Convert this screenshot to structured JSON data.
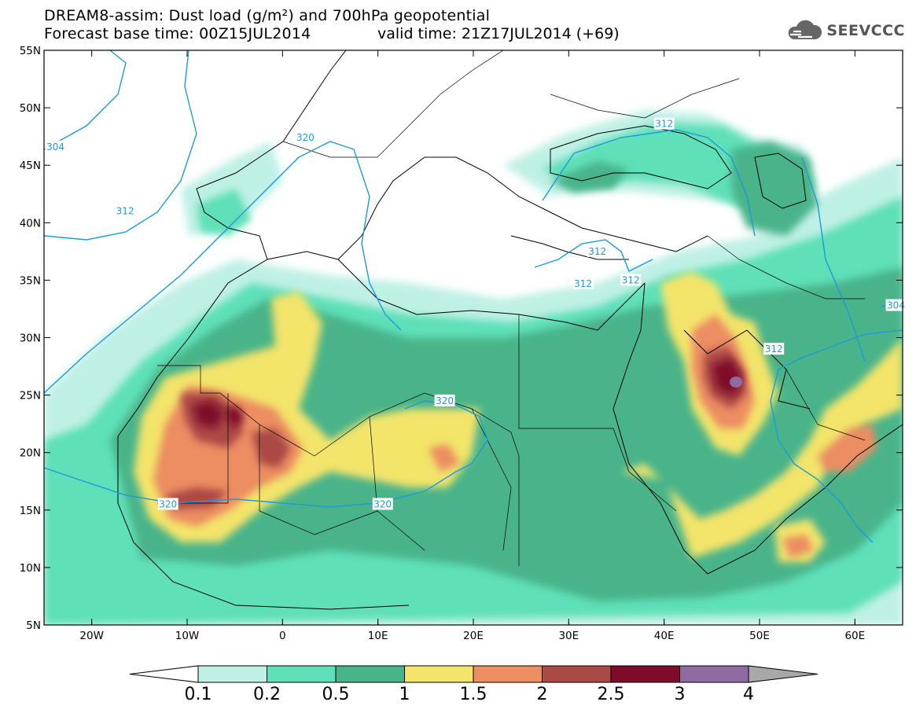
{
  "header": {
    "title": "DREAM8-assim: Dust load (g/m²) and 700hPa geopotential",
    "base_time": "Forecast base time: 00Z15JUL2014",
    "valid_time": "valid time: 21Z17JUL2014 (+69)"
  },
  "logo": {
    "text": "SEEVCCC",
    "icon": "cloud-icon"
  },
  "map": {
    "lon_range": [
      -25,
      65
    ],
    "lat_range": [
      5,
      55
    ],
    "lon_ticks": [
      {
        "lon": -20,
        "label": "20W"
      },
      {
        "lon": -10,
        "label": "10W"
      },
      {
        "lon": 0,
        "label": "0"
      },
      {
        "lon": 10,
        "label": "10E"
      },
      {
        "lon": 20,
        "label": "20E"
      },
      {
        "lon": 30,
        "label": "30E"
      },
      {
        "lon": 40,
        "label": "40E"
      },
      {
        "lon": 50,
        "label": "50E"
      },
      {
        "lon": 60,
        "label": "60E"
      }
    ],
    "lat_ticks": [
      {
        "lat": 55,
        "label": "55N"
      },
      {
        "lat": 50,
        "label": "50N"
      },
      {
        "lat": 45,
        "label": "45N"
      },
      {
        "lat": 40,
        "label": "40N"
      },
      {
        "lat": 35,
        "label": "35N"
      },
      {
        "lat": 30,
        "label": "30N"
      },
      {
        "lat": 25,
        "label": "25N"
      },
      {
        "lat": 20,
        "label": "20N"
      },
      {
        "lat": 15,
        "label": "15N"
      },
      {
        "lat": 10,
        "label": "10N"
      },
      {
        "lat": 5,
        "label": "5N"
      }
    ],
    "contour_color": "#1f9ad6",
    "contour_labels": [
      {
        "text": "304",
        "lon": -23.8,
        "lat": 46.6
      },
      {
        "text": "312",
        "lon": -16.5,
        "lat": 41.0
      },
      {
        "text": "320",
        "lon": 2.4,
        "lat": 47.4
      },
      {
        "text": "312",
        "lon": 40.0,
        "lat": 48.6
      },
      {
        "text": "312",
        "lon": 33.0,
        "lat": 37.5
      },
      {
        "text": "312",
        "lon": 31.5,
        "lat": 34.7
      },
      {
        "text": "312",
        "lon": 36.5,
        "lat": 35.0
      },
      {
        "text": "312",
        "lon": 51.5,
        "lat": 29.0
      },
      {
        "text": "304",
        "lon": 64.3,
        "lat": 32.8
      },
      {
        "text": "320",
        "lon": 17.0,
        "lat": 24.5
      },
      {
        "text": "320",
        "lon": 10.5,
        "lat": 15.5
      },
      {
        "text": "320",
        "lon": -12.0,
        "lat": 15.5
      }
    ]
  },
  "colorbar": {
    "levels": [
      "0.1",
      "0.2",
      "0.5",
      "1",
      "1.5",
      "2",
      "2.5",
      "3",
      "4"
    ],
    "colors": [
      "#bff0e6",
      "#5fe0b8",
      "#48b48a",
      "#f3e46a",
      "#ec8d62",
      "#aa4a44",
      "#7f0a2a",
      "#8f6ba1",
      "#a8a8a8"
    ],
    "under_color": "#ffffff"
  }
}
